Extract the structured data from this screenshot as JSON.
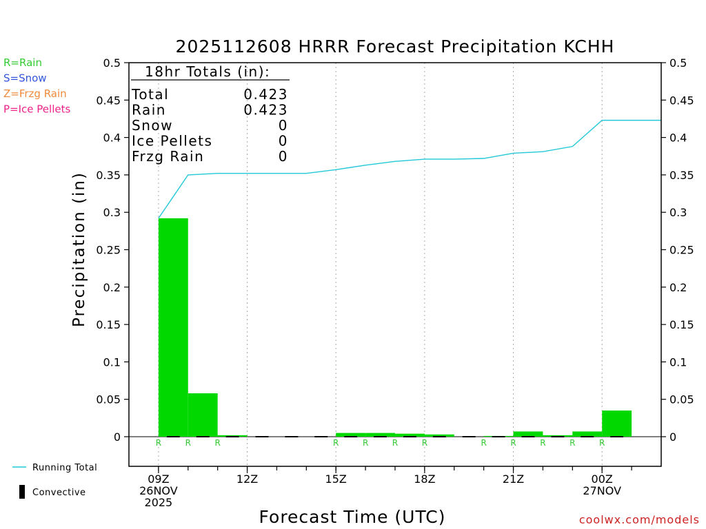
{
  "chart_data": {
    "type": "bar",
    "title": "2025112608 HRRR Forecast Precipitation KCHH",
    "ylabel": "Precipitation (in)",
    "xlabel": "Forecast Time (UTC)",
    "ylim": [
      -0.04,
      0.5
    ],
    "yticks": [
      "0.5",
      "0.45",
      "0.4",
      "0.35",
      "0.3",
      "0.25",
      "0.2",
      "0.15",
      "0.1",
      "0.05",
      "0"
    ],
    "ytick_values": [
      0.5,
      0.45,
      0.4,
      0.35,
      0.3,
      0.25,
      0.2,
      0.15,
      0.1,
      0.05,
      0
    ],
    "x_hours": [
      9,
      10,
      11,
      12,
      13,
      14,
      15,
      16,
      17,
      18,
      19,
      20,
      21,
      22,
      23,
      24
    ],
    "xlim_hours": [
      8.0,
      26.0
    ],
    "hourly_precip": [
      0.292,
      0.058,
      0.002,
      0.0,
      0.0,
      0.0,
      0.005,
      0.005,
      0.004,
      0.003,
      0.0,
      0.001,
      0.007,
      0.002,
      0.007,
      0.035
    ],
    "precip_type_labels": [
      "R",
      "R",
      "R",
      "",
      "",
      "",
      "R",
      "R",
      "R",
      "R",
      "",
      "R",
      "R",
      "R",
      "R",
      "R"
    ],
    "running_total": {
      "name": "Running Total",
      "hours": [
        9,
        10,
        11,
        12,
        13,
        14,
        15,
        16,
        17,
        18,
        19,
        20,
        21,
        22,
        23,
        24,
        25,
        26
      ],
      "values": [
        0.292,
        0.35,
        0.352,
        0.352,
        0.352,
        0.352,
        0.357,
        0.363,
        0.368,
        0.371,
        0.371,
        0.372,
        0.379,
        0.381,
        0.388,
        0.423,
        0.423,
        0.423
      ]
    },
    "xticks": [
      {
        "hour": 9,
        "lines": [
          "09Z",
          "26NOV",
          "2025"
        ]
      },
      {
        "hour": 12,
        "lines": [
          "12Z"
        ]
      },
      {
        "hour": 15,
        "lines": [
          "15Z"
        ]
      },
      {
        "hour": 18,
        "lines": [
          "18Z"
        ]
      },
      {
        "hour": 21,
        "lines": [
          "21Z"
        ]
      },
      {
        "hour": 24,
        "lines": [
          "00Z",
          "27NOV"
        ]
      }
    ],
    "totals_box": {
      "header": "18hr Totals (in):",
      "rows": [
        {
          "label": "Total",
          "value": "0.423"
        },
        {
          "label": "Rain",
          "value": "0.423"
        },
        {
          "label": "Snow",
          "value": "0"
        },
        {
          "label": "Ice Pellets",
          "value": "0"
        },
        {
          "label": "Frzg Rain",
          "value": "0"
        }
      ]
    },
    "type_legend": [
      {
        "text": "R=Rain",
        "color": "#33cc33"
      },
      {
        "text": "S=Snow",
        "color": "#3355dd"
      },
      {
        "text": "Z=Frzg Rain",
        "color": "#f08a3c"
      },
      {
        "text": "P=Ice Pellets",
        "color": "#ee2288"
      }
    ],
    "line_legend": [
      {
        "text": "Running Total",
        "kind": "line"
      },
      {
        "text": "Convective",
        "kind": "bar"
      }
    ],
    "credit": "coolwx.com/models",
    "colors": {
      "bar": "#00d800",
      "line": "#22c8d8",
      "grid": "#aaaaaa",
      "rain_label": "#33cc33",
      "credit": "#cc2222"
    }
  }
}
